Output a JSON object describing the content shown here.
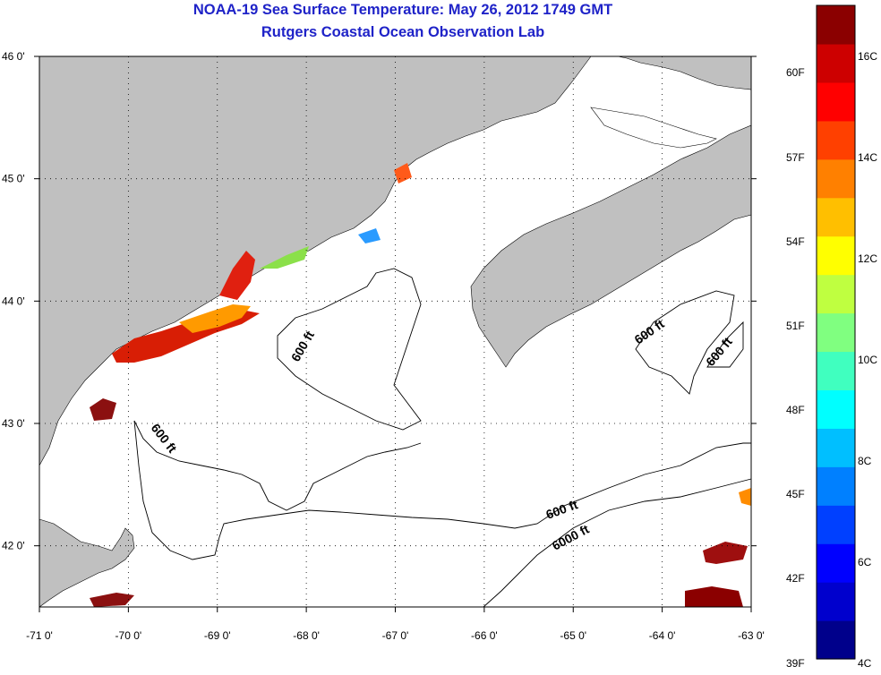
{
  "title_line1": "NOAA-19 Sea Surface Temperature:  May 26, 2012 1749 GMT",
  "title_line2": "Rutgers Coastal Ocean Observation Lab",
  "map": {
    "lon_range": [
      -71,
      -63
    ],
    "lat_range": [
      41.5,
      46
    ],
    "lon_ticks": [
      {
        "value": -71,
        "label": "-71 0'"
      },
      {
        "value": -70,
        "label": "-70 0'"
      },
      {
        "value": -69,
        "label": "-69 0'"
      },
      {
        "value": -68,
        "label": "-68 0'"
      },
      {
        "value": -67,
        "label": "-67 0'"
      },
      {
        "value": -66,
        "label": "-66 0'"
      },
      {
        "value": -65,
        "label": "-65 0'"
      },
      {
        "value": -64,
        "label": "-64 0'"
      },
      {
        "value": -63,
        "label": "-63 0'"
      }
    ],
    "lat_ticks": [
      {
        "value": 46,
        "label": "46 0'"
      },
      {
        "value": 45,
        "label": "45 0'"
      },
      {
        "value": 44,
        "label": "44 0'"
      },
      {
        "value": 43,
        "label": "43 0'"
      },
      {
        "value": 42,
        "label": "42 0'"
      }
    ],
    "grid": "dotted",
    "land_color": "#c0c0c0",
    "water_color": "#ffffff",
    "contour_labels": [
      {
        "text": "600 ft"
      },
      {
        "text": "600 ft"
      },
      {
        "text": "600 ft"
      },
      {
        "text": "600 ft"
      },
      {
        "text": "600 ft"
      },
      {
        "text": "6000 ft"
      }
    ]
  },
  "colorbar": {
    "colors": [
      "#00008b",
      "#0000cd",
      "#0000ff",
      "#0040ff",
      "#0080ff",
      "#00bfff",
      "#00ffff",
      "#40ffbf",
      "#80ff80",
      "#bfff40",
      "#ffff00",
      "#ffbf00",
      "#ff8000",
      "#ff4000",
      "#ff0000",
      "#cd0000",
      "#8b0000"
    ],
    "fahrenheit_labels": [
      "60F",
      "57F",
      "54F",
      "51F",
      "48F",
      "45F",
      "42F",
      "39F"
    ],
    "celsius_labels": [
      "16C",
      "14C",
      "12C",
      "10C",
      "8C",
      "6C",
      "4C"
    ]
  }
}
